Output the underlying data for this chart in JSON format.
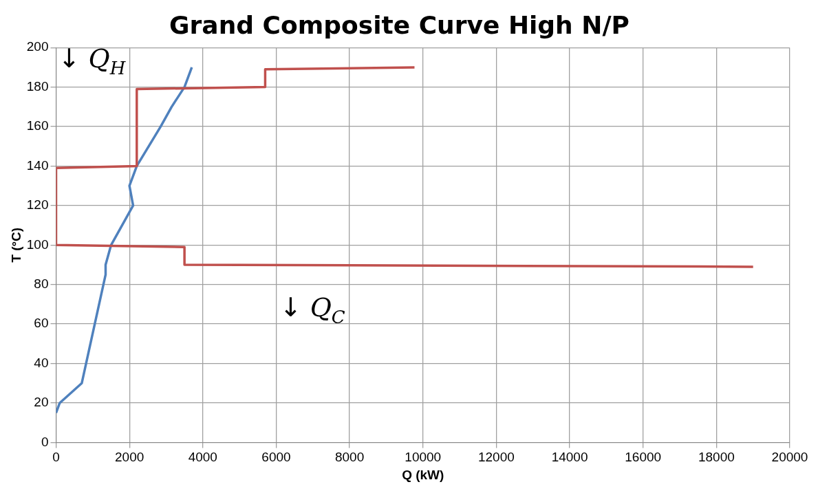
{
  "chart_data": {
    "type": "line",
    "title": "Grand Composite Curve High N/P",
    "xlabel": "Q (kW)",
    "ylabel": "T (°C)",
    "xlim": [
      0,
      20000
    ],
    "xticks": [
      0,
      2000,
      4000,
      6000,
      8000,
      10000,
      12000,
      14000,
      16000,
      18000,
      20000
    ],
    "ylim": [
      0,
      200
    ],
    "yticks": [
      0,
      20,
      40,
      60,
      80,
      100,
      120,
      140,
      160,
      180,
      200
    ],
    "grid": true,
    "legend": false,
    "marker": "none",
    "line_style": "solid",
    "series": [
      {
        "color": "#c0504d",
        "x": [
          9770,
          5700,
          5700,
          2200,
          2200,
          0,
          0,
          3500,
          3500,
          19000
        ],
        "values": [
          190,
          189,
          180,
          179,
          140,
          139,
          100,
          99,
          90,
          89
        ]
      },
      {
        "color": "#4f81bd",
        "x": [
          0,
          100,
          700,
          1350,
          1350,
          1500,
          2100,
          2000,
          2200,
          2850,
          3150,
          3500,
          3700
        ],
        "values": [
          15,
          20,
          30,
          85,
          90,
          100,
          120,
          130,
          140,
          160,
          170,
          180,
          190
        ]
      }
    ],
    "annotations": [
      "↓ Q$_{H}$",
      "↓ Q$_{C}$"
    ]
  }
}
